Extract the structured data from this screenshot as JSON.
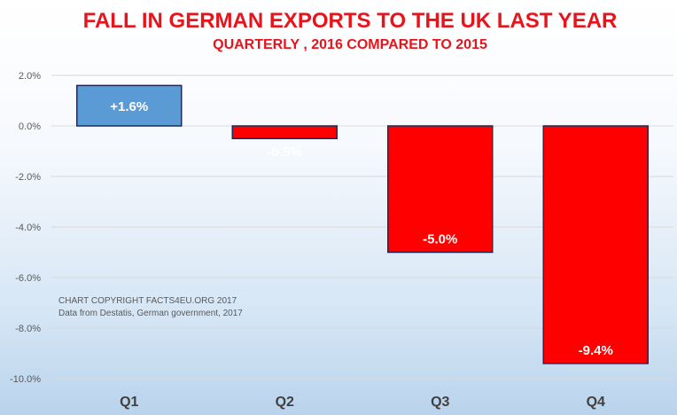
{
  "chart_data": {
    "type": "bar",
    "title": "FALL IN GERMAN EXPORTS TO THE UK LAST YEAR",
    "subtitle": "QUARTERLY , 2016 COMPARED TO 2015",
    "categories": [
      "Q1",
      "Q2",
      "Q3",
      "Q4"
    ],
    "values": [
      1.6,
      -0.5,
      -5.0,
      -9.4
    ],
    "data_labels": [
      "+1.6%",
      "-0.5%",
      "-5.0%",
      "-9.4%"
    ],
    "yticks": [
      2.0,
      0.0,
      -2.0,
      -4.0,
      -6.0,
      -8.0,
      -10.0
    ],
    "ytick_labels": [
      "2.0%",
      "0.0%",
      "-2.0%",
      "-4.0%",
      "-6.0%",
      "-8.0%",
      "-10.0%"
    ],
    "ylim": [
      -10.0,
      2.0
    ],
    "grid": true,
    "annotations": [
      "CHART COPYRIGHT FACTS4EU.ORG 2017",
      "Data from Destatis, German government, 2017"
    ],
    "colors": {
      "title": "#e8141b",
      "positive_bar": "#5b9bd5",
      "negative_bar": "#ff0000",
      "bar_border": "#1f2a5a",
      "category_label": "#404040",
      "tick_label": "#595959",
      "gridline": "#d9d9d9"
    }
  }
}
